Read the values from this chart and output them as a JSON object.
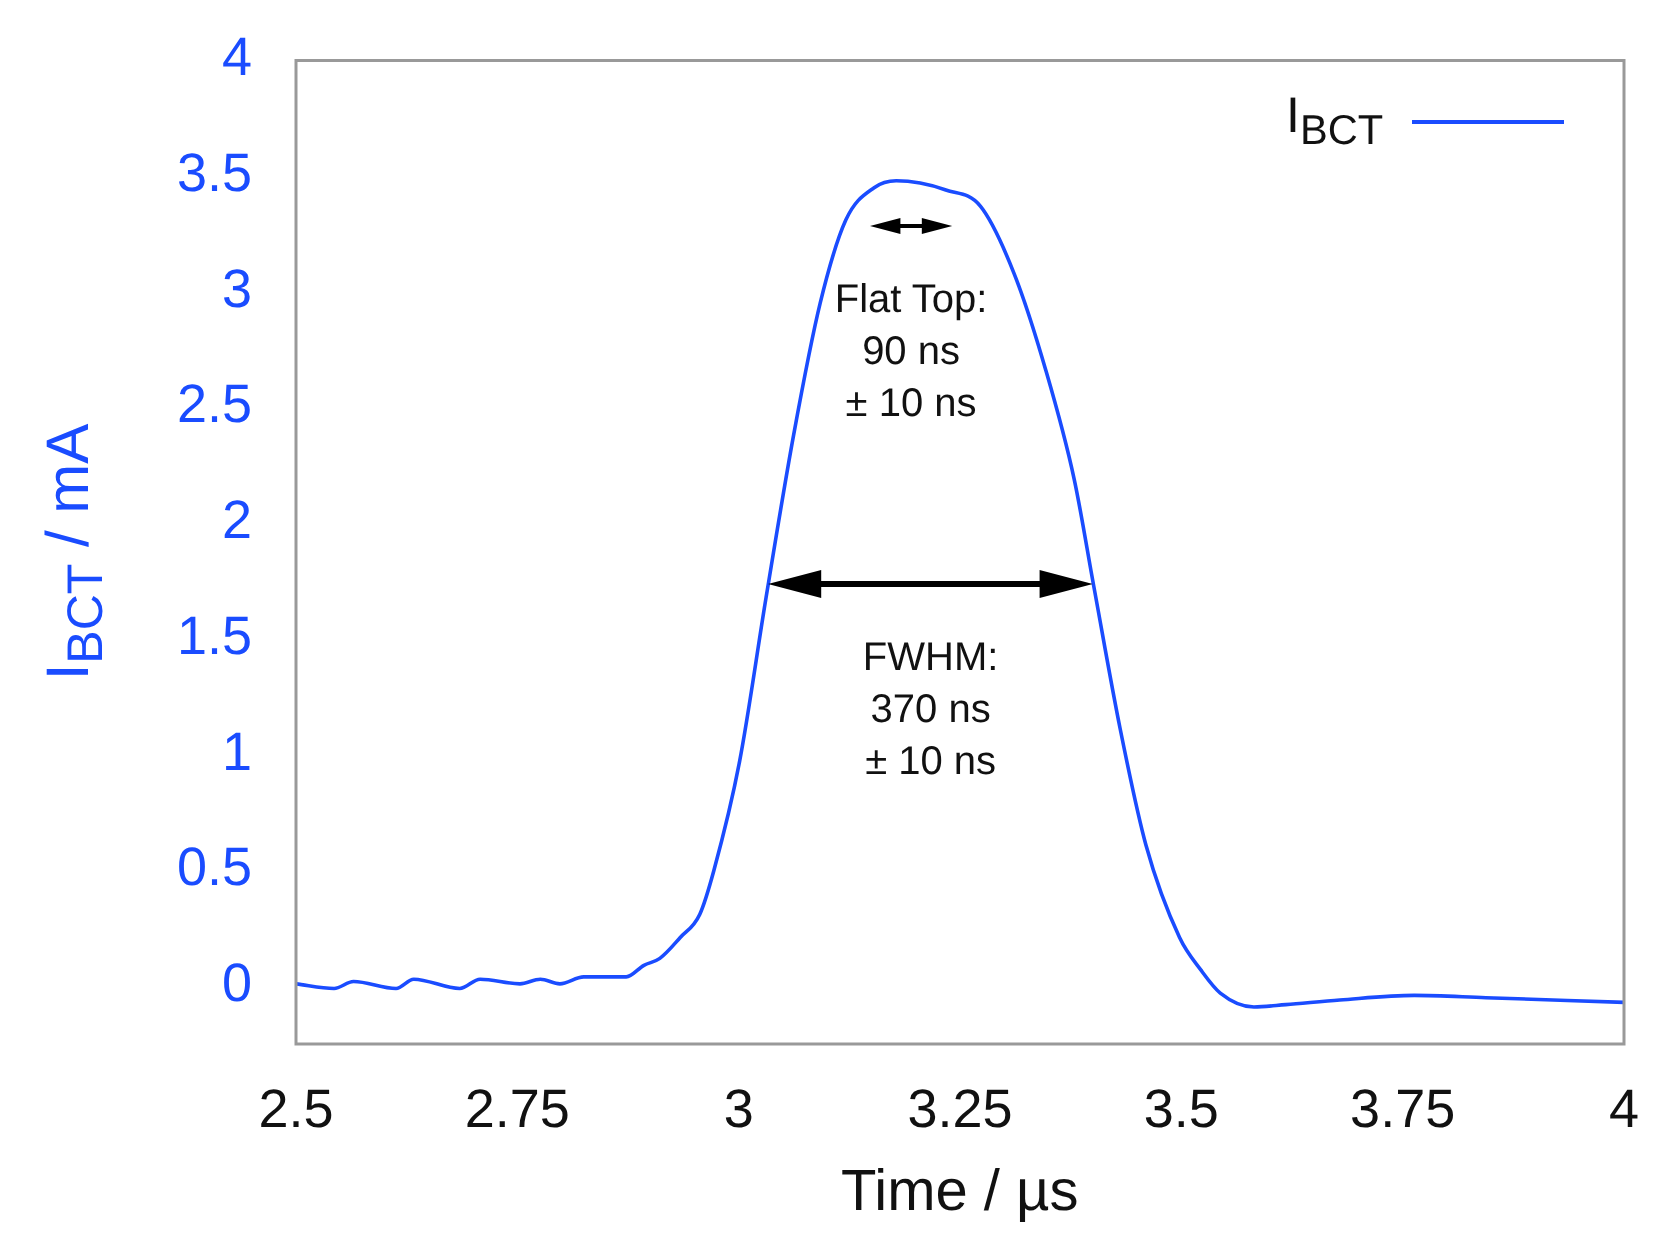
{
  "chart_data": {
    "type": "line",
    "xlabel": "Time / µs",
    "ylabel": "I$_{BCT}$ / mA",
    "legend": "top right",
    "marker": "none",
    "line_style": "solid",
    "xlim": [
      2.5,
      4
    ],
    "xticks": [
      2.5,
      2.75,
      3,
      3.25,
      3.5,
      3.75,
      4
    ],
    "ylim": [
      -0.25,
      4
    ],
    "yticks": [
      0,
      0.5,
      1,
      1.5,
      2,
      2.5,
      3,
      3.5,
      4
    ],
    "series": [
      {
        "name": "I$_{BCT}$",
        "color": "#1a4cff",
        "x": [
          2.5,
          2.543,
          2.565,
          2.613,
          2.633,
          2.685,
          2.708,
          2.753,
          2.776,
          2.798,
          2.825,
          2.873,
          2.893,
          2.911,
          2.934,
          2.956,
          2.972,
          3.001,
          3.031,
          3.062,
          3.092,
          3.121,
          3.153,
          3.178,
          3.205,
          3.234,
          3.273,
          3.311,
          3.347,
          3.379,
          3.401,
          3.431,
          3.46,
          3.498,
          3.522,
          3.544,
          3.582,
          3.618,
          3.679,
          3.763,
          3.844,
          4.0
        ],
        "values": [
          0.01,
          -0.01,
          0.02,
          -0.01,
          0.03,
          -0.01,
          0.03,
          0.01,
          0.03,
          0.01,
          0.04,
          0.04,
          0.09,
          0.12,
          0.21,
          0.31,
          0.5,
          0.97,
          1.68,
          2.38,
          2.95,
          3.31,
          3.45,
          3.48,
          3.47,
          3.44,
          3.37,
          3.08,
          2.66,
          2.19,
          1.73,
          1.11,
          0.61,
          0.21,
          0.07,
          -0.03,
          -0.09,
          -0.08,
          -0.06,
          -0.04,
          -0.05,
          -0.07
        ]
      }
    ],
    "annotations": [
      "Flat Top:\n90 ns\n± 10 ns",
      "FWHM:\n370 ns\n± 10 ns"
    ]
  }
}
